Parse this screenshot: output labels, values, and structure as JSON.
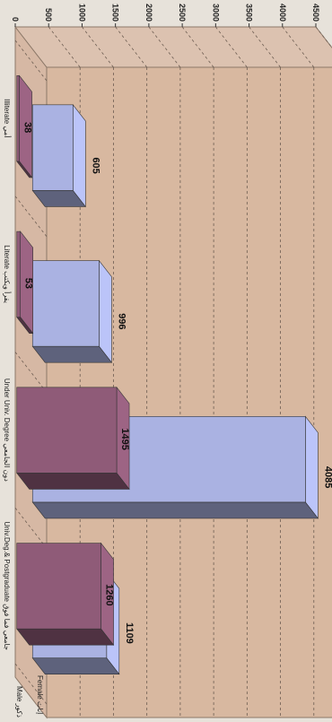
{
  "chart_data": {
    "type": "bar",
    "categories": [
      "Illiterate أمي",
      "Literate يقرأ ويكتب",
      "Under Univ. Degree دون الجامعي",
      "Univ.Deg.& Postgraduate جامعي فما فوق"
    ],
    "series": [
      {
        "name": "Male ذكور",
        "values": [
          605,
          996,
          4085,
          1109
        ]
      },
      {
        "name": "Female إناث",
        "values": [
          38,
          53,
          1495,
          1260
        ]
      }
    ],
    "data_labels": {
      "male": [
        "605",
        "996",
        "4085",
        "1109"
      ],
      "female": [
        "38",
        "53",
        "1495",
        "1260"
      ]
    },
    "ylim": [
      0,
      4500
    ],
    "yticks": [
      "0",
      "500",
      "1000",
      "1500",
      "2000",
      "2500",
      "3000",
      "3500",
      "4000",
      "4500"
    ],
    "title": "",
    "xlabel": "",
    "ylabel": "",
    "grid": true,
    "legend_placement": "right",
    "colors": {
      "male": "#aab2e2",
      "female": "#8f5b78",
      "back_wall": "#d8b8a0",
      "floor": "#d6b8a4",
      "side_wall": "#dcc2b0",
      "page": "#e7e2da"
    }
  }
}
